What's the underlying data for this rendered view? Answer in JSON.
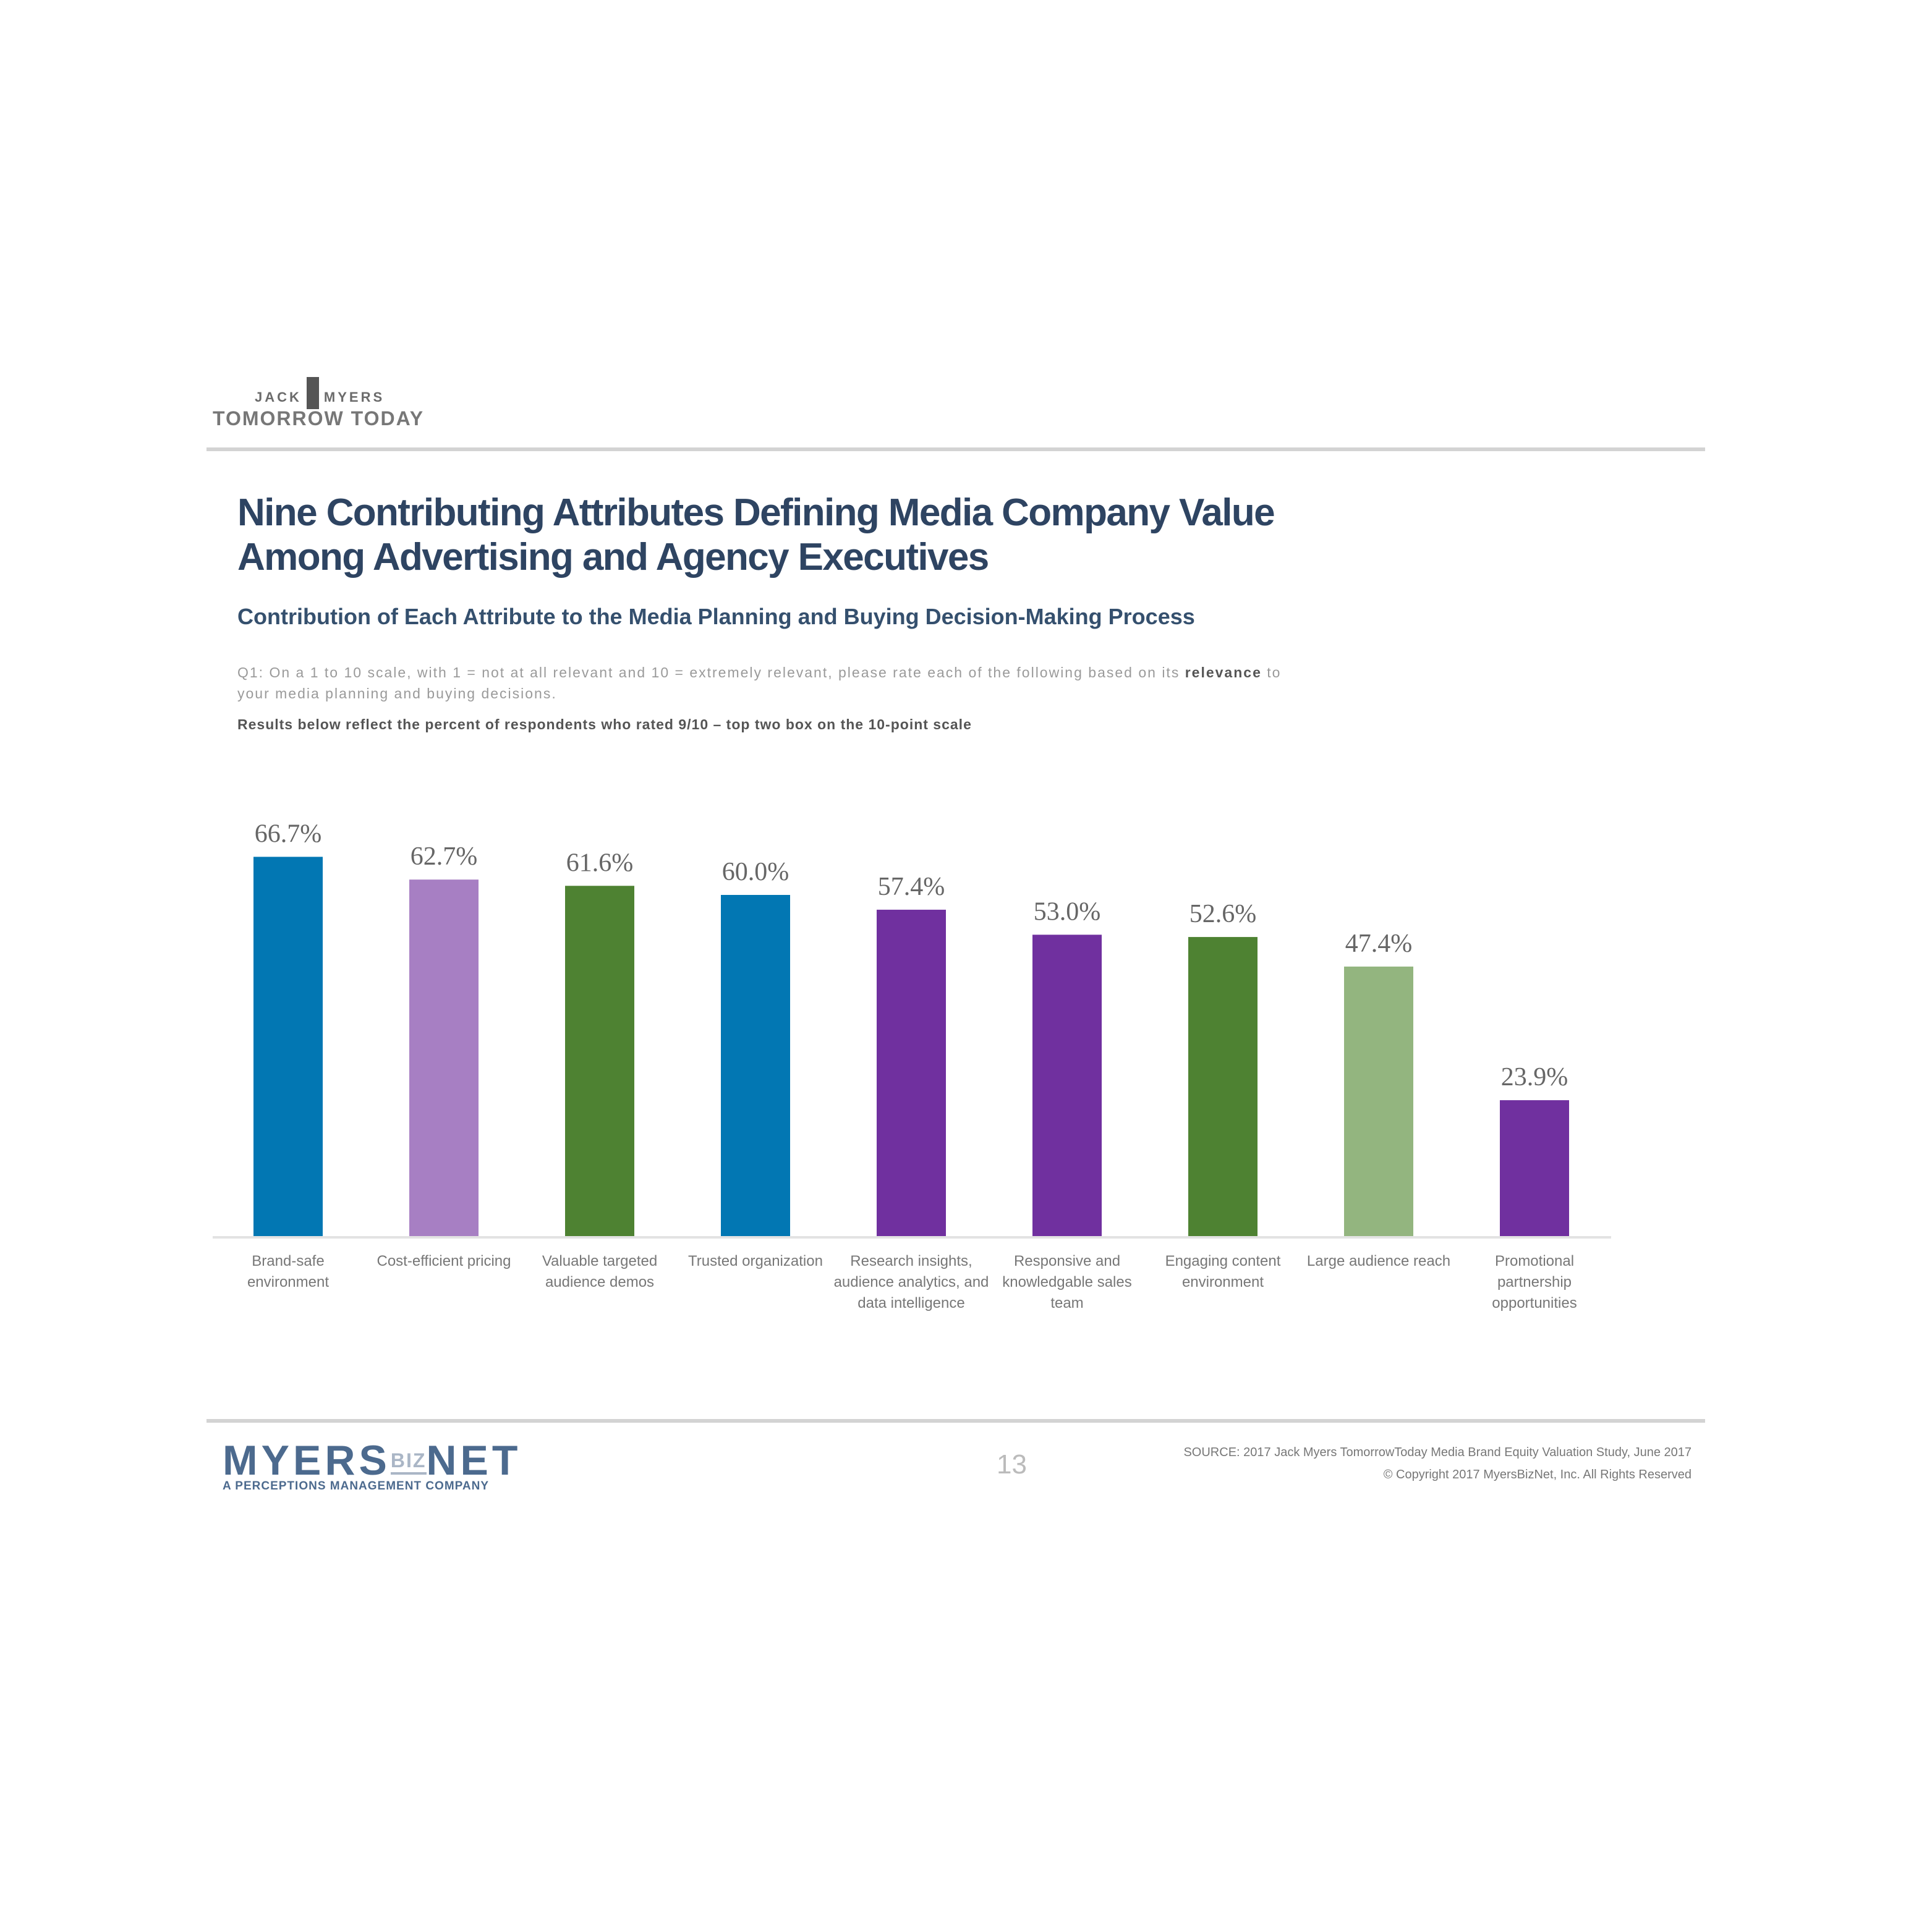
{
  "logo": {
    "brand_left": "JACK",
    "brand_right": "MYERS",
    "tagline": "TOMORROW TODAY"
  },
  "header": {
    "title": "Nine Contributing Attributes Defining Media Company Value Among Advertising and Agency Executives",
    "subtitle": "Contribution of Each Attribute to the Media Planning and Buying Decision-Making Process",
    "question_pre": "Q1: On a 1 to 10 scale, with 1 = not at all relevant and 10 = extremely relevant, please rate each of the following based on its ",
    "question_bold": "relevance",
    "question_post": " to your media planning and buying decisions.",
    "results_note": "Results below reflect the percent of respondents who rated 9/10 – top two box on the 10-point scale"
  },
  "chart_data": {
    "type": "bar",
    "categories": [
      "Brand-safe environment",
      "Cost-efficient pricing",
      "Valuable targeted audience demos",
      "Trusted organization",
      "Research insights, audience analytics, and data intelligence",
      "Responsive and knowledgable sales team",
      "Engaging content environment",
      "Large audience reach",
      "Promotional partnership opportunities"
    ],
    "values": [
      66.7,
      62.7,
      61.6,
      60.0,
      57.4,
      53.0,
      52.6,
      47.4,
      23.9
    ],
    "data_labels": [
      "66.7%",
      "62.7%",
      "61.6%",
      "60.0%",
      "57.4%",
      "53.0%",
      "52.6%",
      "47.4%",
      "23.9%"
    ],
    "colors": [
      "#0277b3",
      "#a77fc3",
      "#4e8232",
      "#0277b3",
      "#70309f",
      "#70309f",
      "#4e8232",
      "#93b57f",
      "#70309f"
    ],
    "ylim": [
      0,
      100
    ],
    "grid": false,
    "legend": "none",
    "title": "",
    "xlabel": "",
    "ylabel": ""
  },
  "footer": {
    "company": "MYERS",
    "company_mid": "BIZ",
    "company_end": "NET",
    "company_tagline": "A PERCEPTIONS MANAGEMENT COMPANY",
    "page_number": "13",
    "source": "SOURCE: 2017 Jack Myers TomorrowToday Media Brand Equity Valuation Study, June 2017",
    "copyright": "© Copyright 2017 MyersBizNet, Inc. All Rights Reserved"
  }
}
